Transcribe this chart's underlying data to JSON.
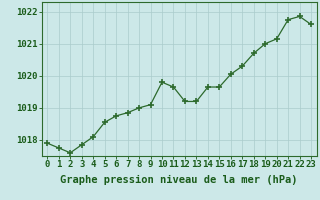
{
  "x": [
    0,
    1,
    2,
    3,
    4,
    5,
    6,
    7,
    8,
    9,
    10,
    11,
    12,
    13,
    14,
    15,
    16,
    17,
    18,
    19,
    20,
    21,
    22,
    23
  ],
  "y": [
    1017.9,
    1017.75,
    1017.6,
    1017.85,
    1018.1,
    1018.55,
    1018.75,
    1018.85,
    1019.0,
    1019.1,
    1019.8,
    1019.65,
    1019.2,
    1019.2,
    1019.65,
    1019.65,
    1020.05,
    1020.3,
    1020.7,
    1021.0,
    1021.15,
    1021.75,
    1021.85,
    1021.6
  ],
  "xlabel": "Graphe pression niveau de la mer (hPa)",
  "line_color": "#2d6a2d",
  "marker_color": "#2d6a2d",
  "bg_color": "#cce8e8",
  "grid_color": "#aacccc",
  "ylim_min": 1017.5,
  "ylim_max": 1022.3,
  "yticks": [
    1018,
    1019,
    1020,
    1021,
    1022
  ],
  "xticks": [
    0,
    1,
    2,
    3,
    4,
    5,
    6,
    7,
    8,
    9,
    10,
    11,
    12,
    13,
    14,
    15,
    16,
    17,
    18,
    19,
    20,
    21,
    22,
    23
  ],
  "xlabel_color": "#1a5c1a",
  "xlabel_fontsize": 7.5,
  "tick_fontsize": 6.5,
  "tick_color": "#1a5c1a",
  "axis_color": "#2d6a2d",
  "fig_bg": "#cce8e8"
}
